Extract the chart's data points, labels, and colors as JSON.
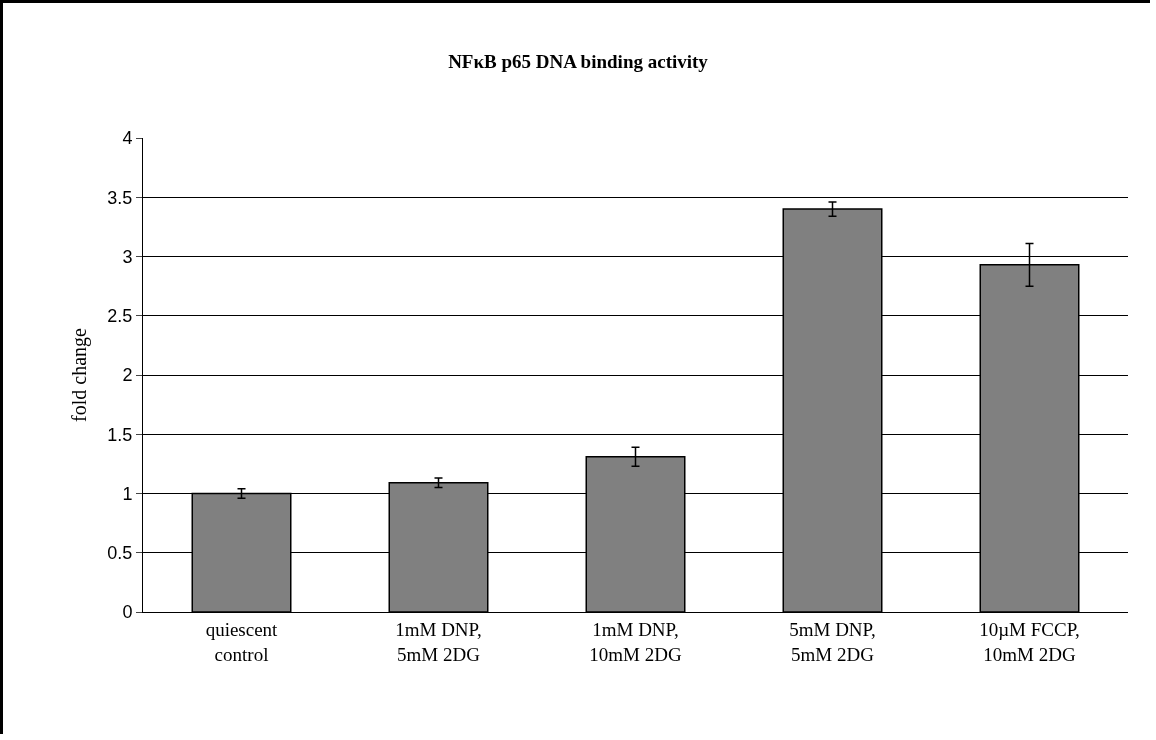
{
  "chart_data": {
    "type": "bar",
    "title": "NFκB p65 DNA binding activity",
    "ylabel": "fold change",
    "categories": [
      "quiescent\ncontrol",
      "1mM DNP,\n5mM 2DG",
      "1mM DNP,\n10mM 2DG",
      "5mM DNP,\n5mM 2DG",
      "10µM FCCP,\n10mM 2DG"
    ],
    "values": [
      1.0,
      1.09,
      1.31,
      3.4,
      2.93
    ],
    "errors": [
      0.04,
      0.04,
      0.08,
      0.06,
      0.18
    ],
    "color": "#808080",
    "ylim": [
      0,
      4
    ],
    "yticks": [
      0,
      0.5,
      1,
      1.5,
      2,
      2.5,
      3,
      3.5,
      4
    ],
    "grid": "y"
  }
}
